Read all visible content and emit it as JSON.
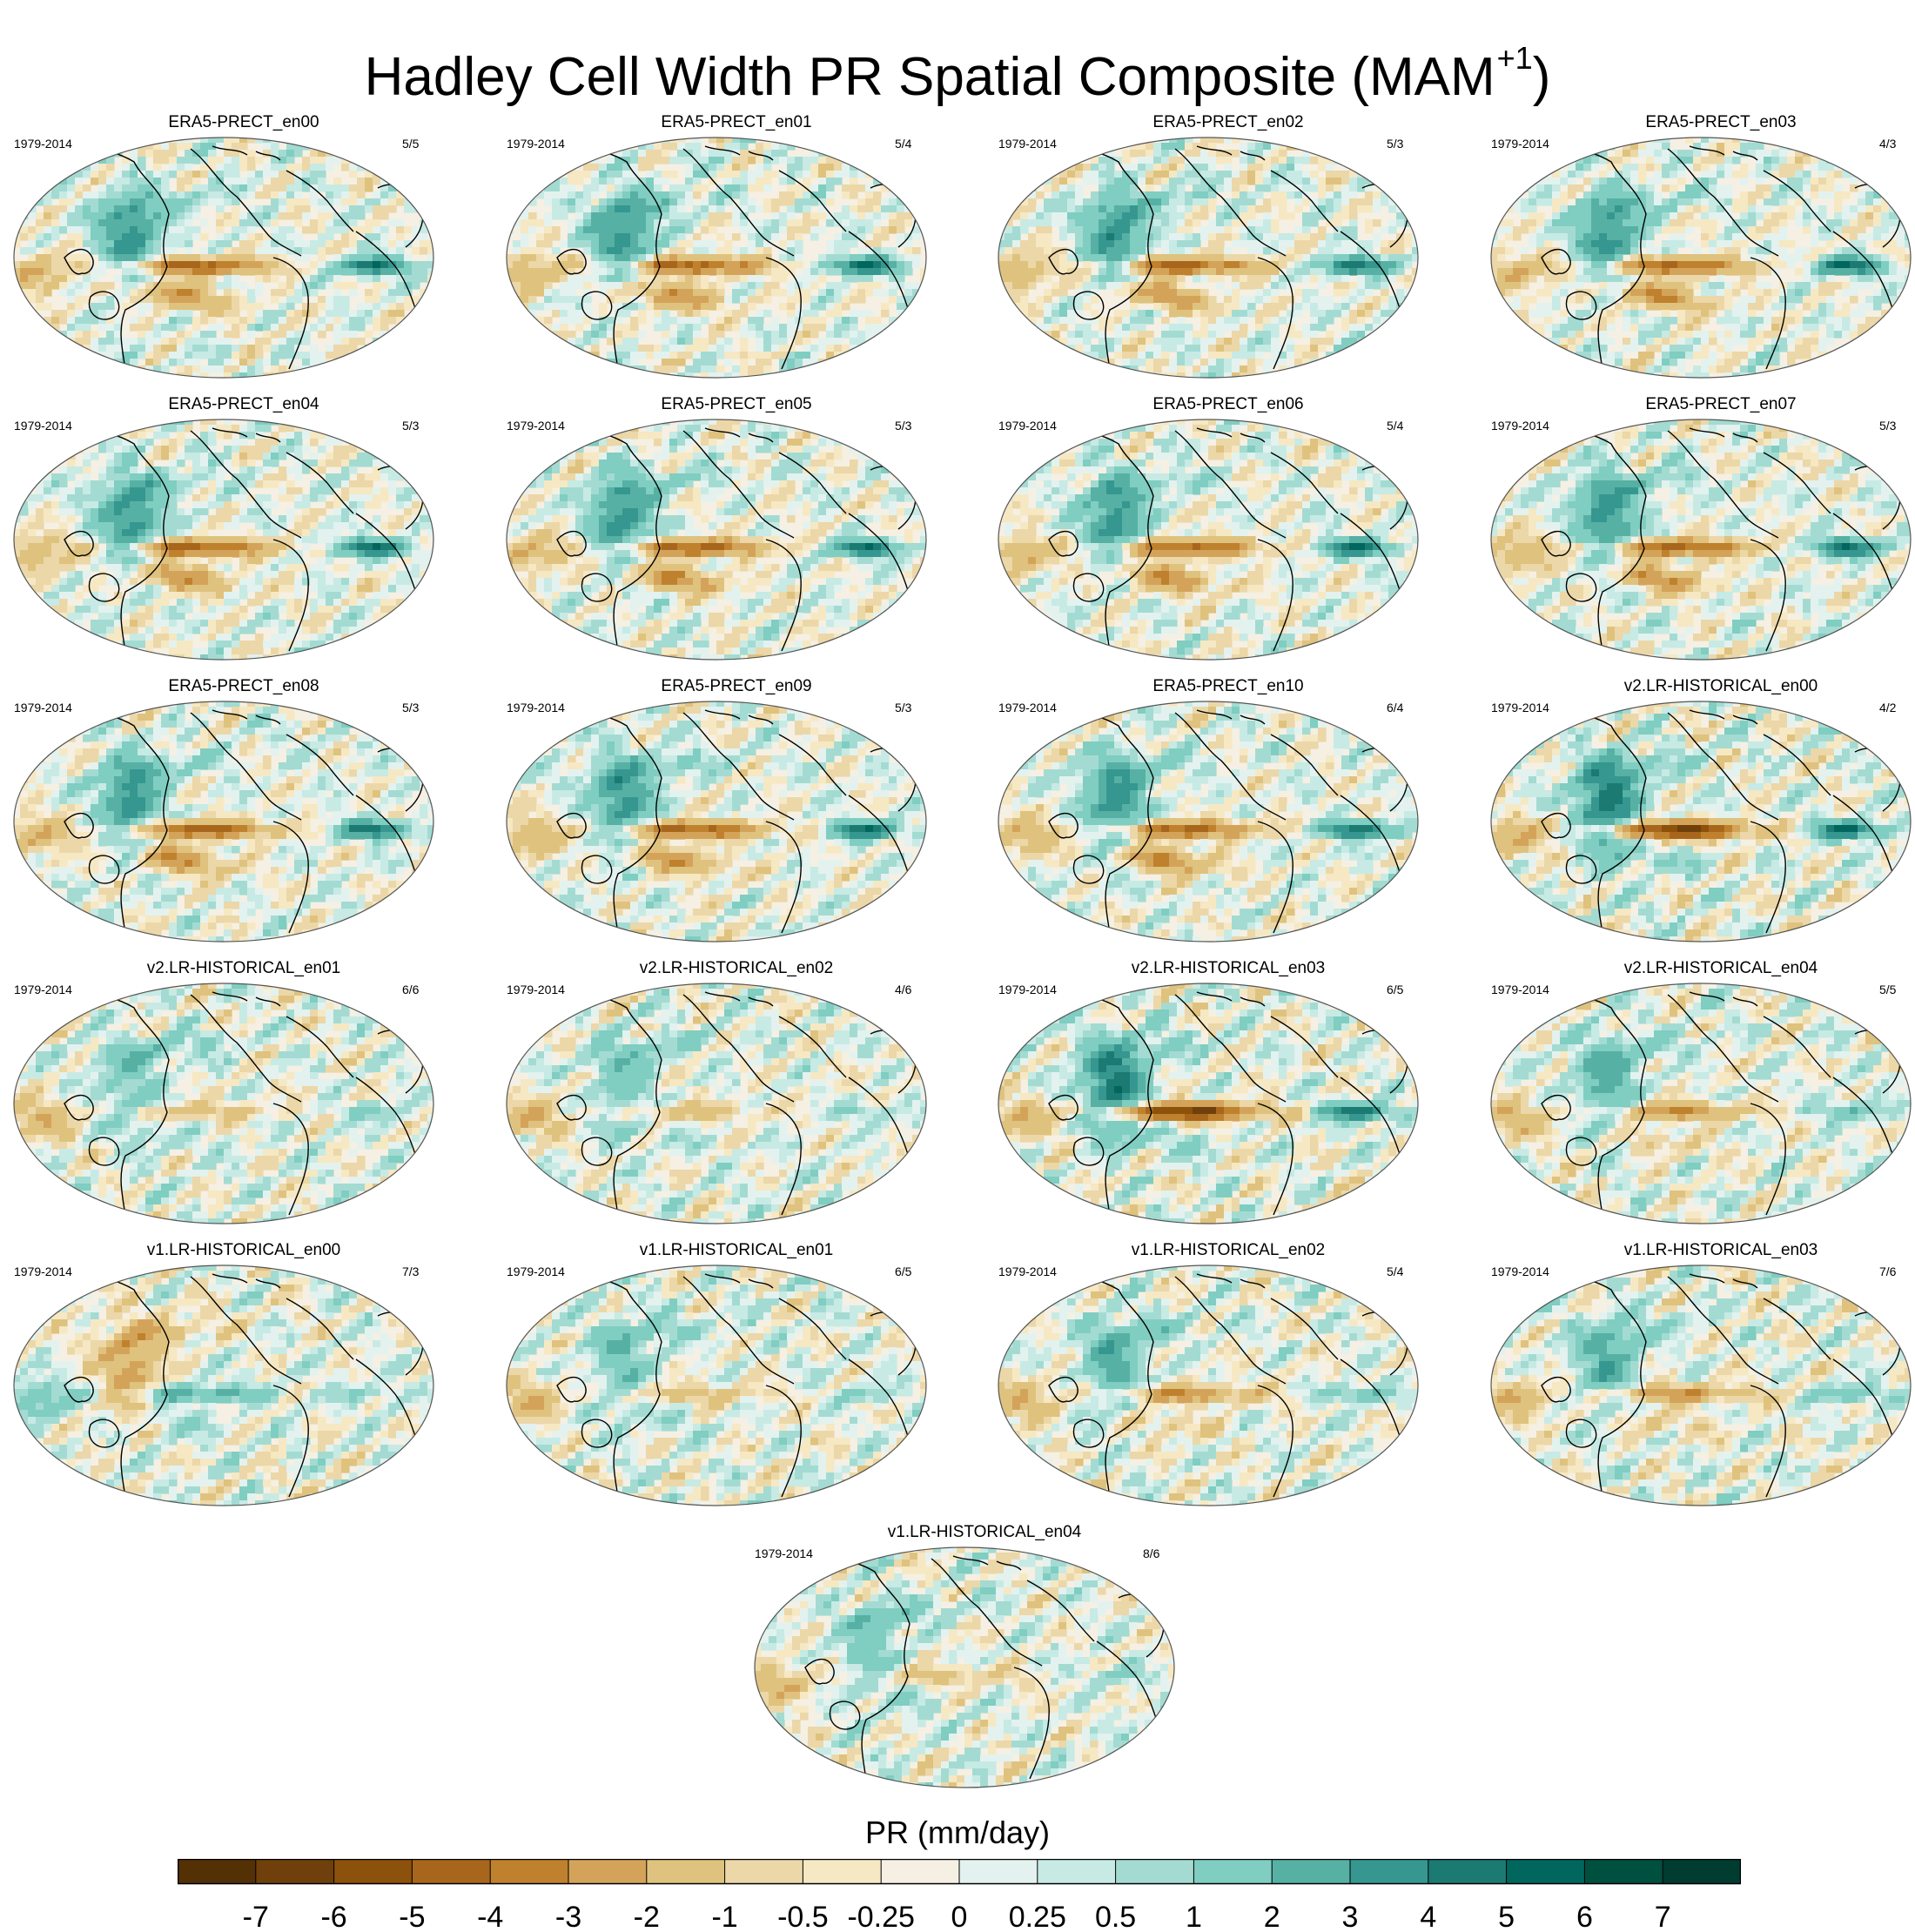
{
  "chart_data": {
    "type": "heatmap",
    "title": "Hadley Cell Width PR Spatial Composite (MAM",
    "title_superscript": "+1",
    "title_suffix": ")",
    "projection": "robinson-like global map",
    "colorbar": {
      "title": "PR (mm/day)",
      "levels": [
        "-7",
        "-6",
        "-5",
        "-4",
        "-3",
        "-2",
        "-1",
        "-0.5",
        "-0.25",
        "0",
        "0.25",
        "0.5",
        "1",
        "2",
        "3",
        "4",
        "5",
        "6",
        "7"
      ],
      "colors": [
        "#543005",
        "#6f400c",
        "#8c510a",
        "#a8661c",
        "#bf812d",
        "#d4a35a",
        "#dfc27d",
        "#ecd7a8",
        "#f6e8c3",
        "#f5f0e3",
        "#e3f2ef",
        "#c7eae5",
        "#a3dbd2",
        "#80cdc1",
        "#57b0a4",
        "#35978f",
        "#1b7a72",
        "#01665e",
        "#00503f",
        "#003c30"
      ]
    },
    "panels": [
      {
        "name": "ERA5-PRECT_en00",
        "period": "1979-2014",
        "count": "5/5",
        "style": "era"
      },
      {
        "name": "ERA5-PRECT_en01",
        "period": "1979-2014",
        "count": "5/4",
        "style": "era"
      },
      {
        "name": "ERA5-PRECT_en02",
        "period": "1979-2014",
        "count": "5/3",
        "style": "era"
      },
      {
        "name": "ERA5-PRECT_en03",
        "period": "1979-2014",
        "count": "4/3",
        "style": "era"
      },
      {
        "name": "ERA5-PRECT_en04",
        "period": "1979-2014",
        "count": "5/3",
        "style": "era"
      },
      {
        "name": "ERA5-PRECT_en05",
        "period": "1979-2014",
        "count": "5/3",
        "style": "era"
      },
      {
        "name": "ERA5-PRECT_en06",
        "period": "1979-2014",
        "count": "5/4",
        "style": "era"
      },
      {
        "name": "ERA5-PRECT_en07",
        "period": "1979-2014",
        "count": "5/3",
        "style": "era"
      },
      {
        "name": "ERA5-PRECT_en08",
        "period": "1979-2014",
        "count": "5/3",
        "style": "era"
      },
      {
        "name": "ERA5-PRECT_en09",
        "period": "1979-2014",
        "count": "5/3",
        "style": "era"
      },
      {
        "name": "ERA5-PRECT_en10",
        "period": "1979-2014",
        "count": "6/4",
        "style": "era"
      },
      {
        "name": "v2.LR-HISTORICAL_en00",
        "period": "1979-2014",
        "count": "4/2",
        "style": "strong"
      },
      {
        "name": "v2.LR-HISTORICAL_en01",
        "period": "1979-2014",
        "count": "6/6",
        "style": "weak"
      },
      {
        "name": "v2.LR-HISTORICAL_en02",
        "period": "1979-2014",
        "count": "4/6",
        "style": "weak"
      },
      {
        "name": "v2.LR-HISTORICAL_en03",
        "period": "1979-2014",
        "count": "6/5",
        "style": "strong"
      },
      {
        "name": "v2.LR-HISTORICAL_en04",
        "period": "1979-2014",
        "count": "5/5",
        "style": "moderate"
      },
      {
        "name": "v1.LR-HISTORICAL_en00",
        "period": "1979-2014",
        "count": "7/3",
        "style": "inverted"
      },
      {
        "name": "v1.LR-HISTORICAL_en01",
        "period": "1979-2014",
        "count": "6/5",
        "style": "weak"
      },
      {
        "name": "v1.LR-HISTORICAL_en02",
        "period": "1979-2014",
        "count": "5/4",
        "style": "moderate"
      },
      {
        "name": "v1.LR-HISTORICAL_en03",
        "period": "1979-2014",
        "count": "7/6",
        "style": "moderate"
      },
      {
        "name": "v1.LR-HISTORICAL_en04",
        "period": "1979-2014",
        "count": "8/6",
        "style": "weak"
      }
    ]
  }
}
